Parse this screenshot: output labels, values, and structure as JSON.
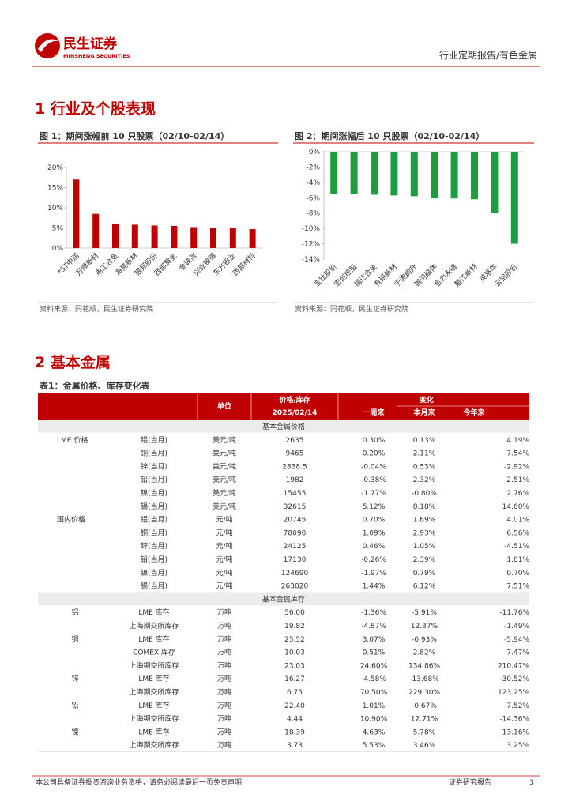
{
  "header": {
    "brand": "民生证券",
    "brand_en": "MINSHENG SECURITIES",
    "report_type": "行业定期报告/有色金属"
  },
  "section1": {
    "title": "1 行业及个股表现"
  },
  "figures": [
    {
      "title": "图 1：期间涨幅前 10 只股票（02/10-02/14）",
      "type": "bar",
      "color": "#c00000",
      "categories": [
        "*ST中润",
        "万顺新材",
        "电工合金",
        "海亮新材",
        "银邦股份",
        "西部黄金",
        "金诚信",
        "兴业银锡",
        "东方钽业",
        "西部材料"
      ],
      "values": [
        17,
        8.5,
        6,
        5.8,
        5.6,
        5.5,
        5.2,
        5,
        4.9,
        4.7
      ],
      "ylim": [
        0,
        20
      ],
      "yticks": [
        {
          "value": 0,
          "label": "0%"
        },
        {
          "value": 5,
          "label": "5%"
        },
        {
          "value": 10,
          "label": "10%"
        },
        {
          "value": 15,
          "label": "15%"
        },
        {
          "value": 20,
          "label": "20%"
        }
      ],
      "source": "资料来源：同花顺，民生证券研究院"
    },
    {
      "title": "图 2：期间涨幅后 10 只股票（02/10-02/14）",
      "type": "bar",
      "color": "#1a9e3f",
      "categories": [
        "宝钛股份",
        "宏创控股",
        "福达合金",
        "有研新材",
        "宁波韵升",
        "银河磁体",
        "金力永磁",
        "楚江新材",
        "英洛华",
        "云铝股份"
      ],
      "values": [
        -5.5,
        -5.5,
        -5.6,
        -5.7,
        -5.8,
        -6,
        -6.1,
        -6.2,
        -8,
        -12
      ],
      "ylim": [
        -14,
        0
      ],
      "yticks": [
        {
          "value": 0,
          "label": "0%"
        },
        {
          "value": -2,
          "label": "-2%"
        },
        {
          "value": -4,
          "label": "-4%"
        },
        {
          "value": -6,
          "label": "-6%"
        },
        {
          "value": -8,
          "label": "-8%"
        },
        {
          "value": -10,
          "label": "-10%"
        },
        {
          "value": -12,
          "label": "-12%"
        },
        {
          "value": -14,
          "label": "-14%"
        }
      ],
      "source": "资料来源：同花顺，民生证券研究院"
    }
  ],
  "section2": {
    "title": "2 基本金属"
  },
  "table": {
    "caption": "表1：金属价格、库存变化表",
    "header": {
      "unit": "单位",
      "value_top": "价格/库存",
      "value_date": "2025/02/14",
      "change": "变化",
      "week": "一周来",
      "month": "本月来",
      "year": "今年来"
    },
    "price_title": "基本金属价格",
    "price_groups": [
      {
        "name": "LME 价格",
        "rows": [
          [
            "铝(当月)",
            "美元/吨",
            "2635",
            "0.30%",
            "0.13%",
            "4.19%"
          ],
          [
            "铜(当月)",
            "美元/吨",
            "9465",
            "0.20%",
            "2.11%",
            "7.54%"
          ],
          [
            "锌(当月)",
            "美元/吨",
            "2838.5",
            "-0.04%",
            "0.53%",
            "-2.92%"
          ],
          [
            "铅(当月)",
            "美元/吨",
            "1982",
            "-0.38%",
            "2.32%",
            "2.51%"
          ],
          [
            "镍(当月)",
            "美元/吨",
            "15455",
            "-1.77%",
            "-0.80%",
            "2.76%"
          ],
          [
            "锡(当月)",
            "美元/吨",
            "32615",
            "5.12%",
            "8.18%",
            "14.60%"
          ]
        ]
      },
      {
        "name": "国内价格",
        "rows": [
          [
            "铝(当月)",
            "元/吨",
            "20745",
            "0.70%",
            "1.69%",
            "4.01%"
          ],
          [
            "铜(当月)",
            "元/吨",
            "78090",
            "1.09%",
            "2.93%",
            "6.56%"
          ],
          [
            "锌(当月)",
            "元/吨",
            "24125",
            "0.46%",
            "1.05%",
            "-4.51%"
          ],
          [
            "铅(当月)",
            "元/吨",
            "17130",
            "-0.26%",
            "2.39%",
            "1.81%"
          ],
          [
            "镍(当月)",
            "元/吨",
            "124690",
            "-1.97%",
            "0.79%",
            "0.70%"
          ],
          [
            "锡(当月)",
            "元/吨",
            "263020",
            "1.44%",
            "6.12%",
            "7.51%"
          ]
        ]
      }
    ],
    "stock_title": "基本金属库存",
    "stock_groups": [
      {
        "name": "铝",
        "rows": [
          [
            "LME 库存",
            "万吨",
            "56.00",
            "-1.36%",
            "-5.91%",
            "-11.76%"
          ],
          [
            "上海期交所库存",
            "万吨",
            "19.82",
            "-4.87%",
            "12.37%",
            "-1.49%"
          ]
        ]
      },
      {
        "name": "铜",
        "rows": [
          [
            "LME 库存",
            "万吨",
            "25.52",
            "3.07%",
            "-0.93%",
            "-5.94%"
          ],
          [
            "COMEX 库存",
            "万吨",
            "10.03",
            "0.51%",
            "2.82%",
            "7.47%"
          ],
          [
            "上海期交所库存",
            "万吨",
            "23.03",
            "24.60%",
            "134.86%",
            "210.47%"
          ]
        ]
      },
      {
        "name": "锌",
        "rows": [
          [
            "LME 库存",
            "万吨",
            "16.27",
            "-4.58%",
            "-13.68%",
            "-30.52%"
          ],
          [
            "上海期交所库存",
            "万吨",
            "6.75",
            "70.50%",
            "229.30%",
            "123.25%"
          ]
        ]
      },
      {
        "name": "铅",
        "rows": [
          [
            "LME 库存",
            "万吨",
            "22.40",
            "1.01%",
            "-0.67%",
            "-7.52%"
          ],
          [
            "上海期交所库存",
            "万吨",
            "4.44",
            "10.90%",
            "12.71%",
            "-14.36%"
          ]
        ]
      },
      {
        "name": "镍",
        "rows": [
          [
            "LME 库存",
            "万吨",
            "18.39",
            "4.63%",
            "5.78%",
            "13.16%"
          ],
          [
            "上海期交所库存",
            "万吨",
            "3.73",
            "5.53%",
            "3.46%",
            "3.25%"
          ]
        ]
      }
    ]
  },
  "footer": {
    "disclaimer": "本公司具备证券投资咨询业务资格，请务必阅读最后一页免责声明",
    "label": "证券研究报告",
    "page": "3"
  }
}
